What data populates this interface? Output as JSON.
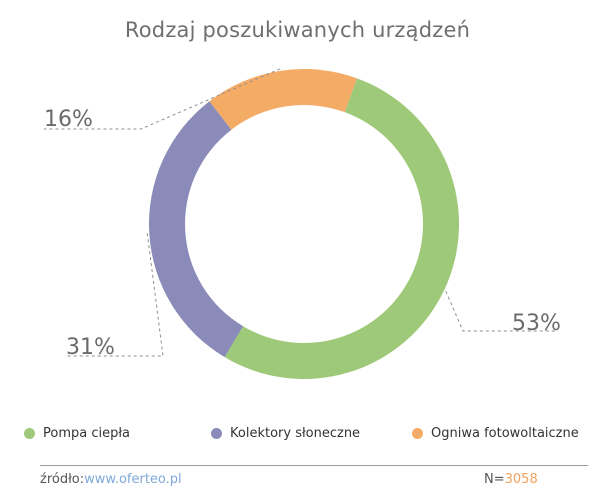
{
  "chart_data": {
    "type": "pie",
    "variant": "donut",
    "title": "Rodzaj poszukiwanych urządzeń",
    "slices": [
      {
        "label": "Pompa ciepła",
        "value": 53,
        "display": "53%",
        "color": "#9dc978"
      },
      {
        "label": "Kolektory słoneczne",
        "value": 31,
        "display": "31%",
        "color": "#8a8bb8"
      },
      {
        "label": "Ogniwa fotowoltaiczne",
        "value": 16,
        "display": "16%",
        "color": "#f4ab66"
      }
    ],
    "legend_position": "bottom"
  },
  "footer": {
    "source_label": "źródło:",
    "source_link": "www.oferteo.pl",
    "n_label": "N=",
    "n_value": "3058"
  }
}
